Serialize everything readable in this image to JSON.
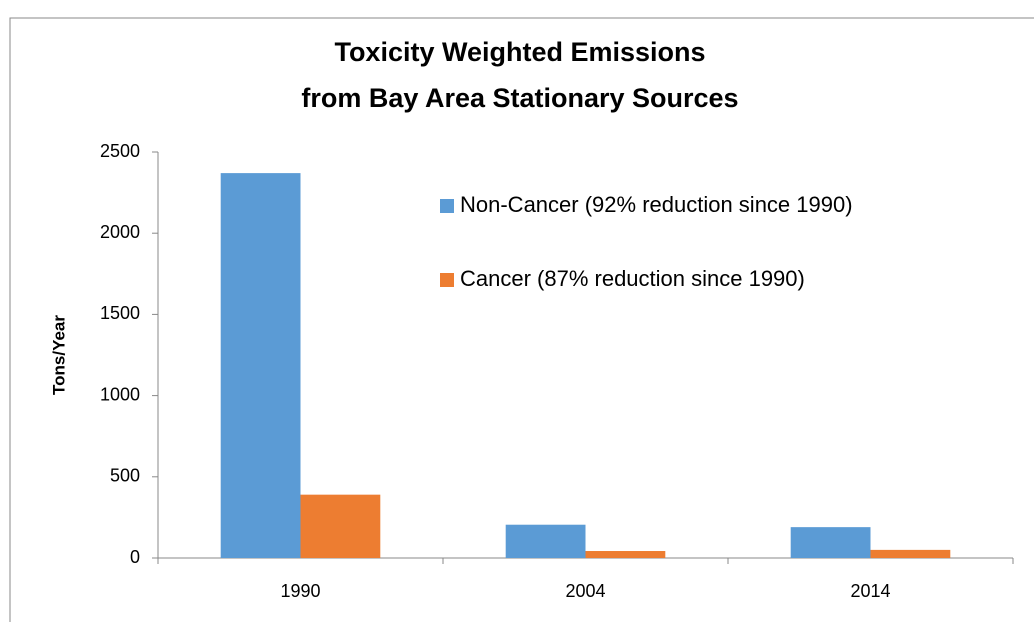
{
  "chart_data": {
    "type": "bar",
    "title": [
      "Toxicity Weighted Emissions",
      "from Bay Area Stationary Sources"
    ],
    "y_label": "Tons/Year",
    "categories": [
      "1990",
      "2004",
      "2014"
    ],
    "series": [
      {
        "name": "Non-Cancer (92% reduction since 1990)",
        "color": "#5b9bd5",
        "values": [
          2370,
          205,
          190
        ]
      },
      {
        "name": "Cancer (87% reduction since 1990)",
        "color": "#ed7d31",
        "values": [
          390,
          43,
          50
        ]
      }
    ],
    "ylim": [
      0,
      2500
    ],
    "yticks": [
      0,
      500,
      1000,
      1500,
      2000,
      2500
    ],
    "grid": false,
    "legend": "top-right"
  }
}
